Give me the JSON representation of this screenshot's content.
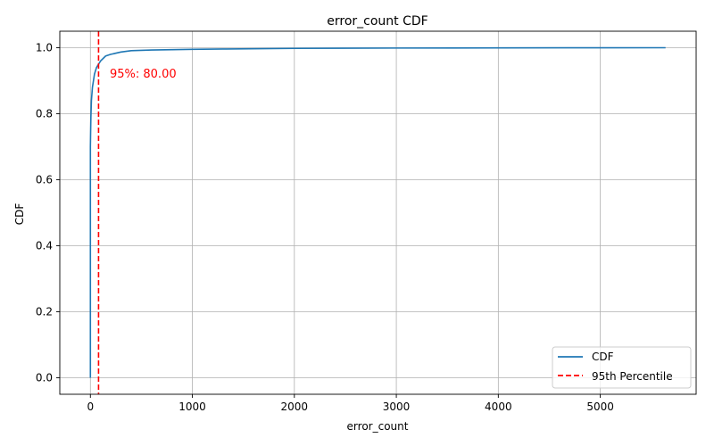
{
  "chart_data": {
    "type": "line",
    "title": "error_count CDF",
    "xlabel": "error_count",
    "ylabel": "CDF",
    "xlim": [
      -300,
      5940
    ],
    "ylim": [
      -0.05,
      1.05
    ],
    "xticks": [
      0,
      1000,
      2000,
      3000,
      4000,
      5000
    ],
    "xtick_labels": [
      "0",
      "1000",
      "2000",
      "3000",
      "4000",
      "5000"
    ],
    "yticks": [
      0.0,
      0.2,
      0.4,
      0.6,
      0.8,
      1.0
    ],
    "ytick_labels": [
      "0.0",
      "0.2",
      "0.4",
      "0.6",
      "0.8",
      "1.0"
    ],
    "grid": true,
    "legend_position": "bottom-right",
    "series": [
      {
        "name": "CDF",
        "color": "#1f77b4",
        "style": "solid",
        "x": [
          0,
          0,
          2,
          5,
          10,
          20,
          30,
          40,
          50,
          60,
          70,
          80,
          100,
          150,
          200,
          300,
          400,
          600,
          800,
          1000,
          1300,
          2000,
          3000,
          4000,
          5000,
          5640
        ],
        "y": [
          0.0,
          0.7,
          0.74,
          0.79,
          0.84,
          0.88,
          0.9,
          0.92,
          0.93,
          0.94,
          0.945,
          0.95,
          0.96,
          0.975,
          0.98,
          0.987,
          0.991,
          0.993,
          0.994,
          0.995,
          0.996,
          0.998,
          0.999,
          0.9995,
          0.9998,
          1.0
        ]
      },
      {
        "name": "95th Percentile",
        "color": "#ff0000",
        "style": "dashed",
        "vline_x": 80.0
      }
    ],
    "annotations": [
      {
        "text": "95%: 80.00",
        "x": 190,
        "y": 0.91,
        "color": "#ff0000"
      }
    ]
  }
}
